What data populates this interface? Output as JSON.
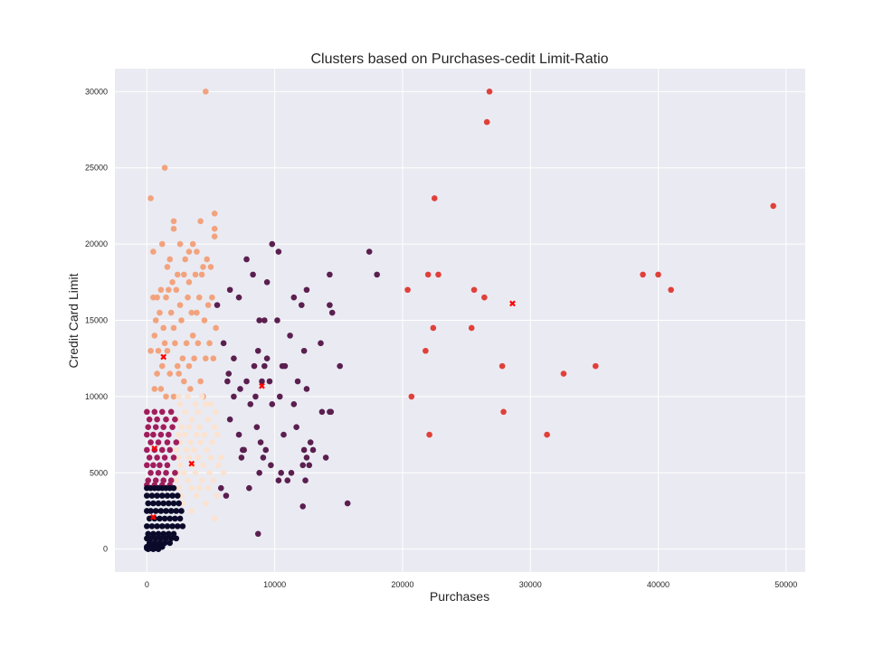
{
  "chart_data": {
    "type": "scatter",
    "title": "Clusters based on Purchases-cedit Limit-Ratio",
    "xlabel": "Purchases",
    "ylabel": "Credit Card Limit",
    "xlim": [
      -2500,
      51500
    ],
    "ylim": [
      -1500,
      31500
    ],
    "xticks": [
      0,
      10000,
      20000,
      30000,
      40000,
      50000
    ],
    "yticks": [
      0,
      5000,
      10000,
      15000,
      20000,
      25000,
      30000
    ],
    "grid": true,
    "background": "#eaeaf2",
    "colors": {
      "cluster_low_limit": "#0b0a2a",
      "cluster_mid_limit": "#a01d5c",
      "cluster_mid_purchases": "#fbe3d1",
      "cluster_high_limit": "#f2a37d",
      "cluster_high_purchases": "#5a1f4f",
      "cluster_outliers": "#e0403a",
      "centroid": "#ff0000"
    },
    "series": [
      {
        "color": "#e0403a",
        "x": [
          26800,
          26600,
          22500,
          49000,
          22000,
          22800,
          20400,
          25600,
          26400,
          38800,
          40000,
          41000,
          22400,
          25400,
          21800,
          27800,
          32600,
          35100,
          20700,
          27900,
          22100,
          31300
        ],
        "y": [
          30000,
          28000,
          23000,
          22500,
          18000,
          18000,
          17000,
          17000,
          16500,
          18000,
          18000,
          17000,
          14500,
          14500,
          13000,
          12000,
          11500,
          12000,
          10000,
          9000,
          7500,
          7500
        ]
      },
      {
        "color": "#5a1f4f",
        "x": [
          9800,
          10300,
          17400,
          18000,
          7800,
          8300,
          9400,
          14300,
          11500,
          12500,
          12100,
          6500,
          7200,
          5500,
          14300,
          14500,
          13600,
          8800,
          9200,
          10200,
          11200,
          12300,
          6000,
          8700,
          9400,
          10600,
          15100,
          6400,
          6800,
          7800,
          8400,
          9200,
          9600,
          10800,
          11800,
          12500,
          7300,
          8500,
          9000,
          14300,
          14400,
          6800,
          8100,
          9800,
          10400,
          11500,
          12800,
          13000,
          7200,
          8600,
          11700,
          12300,
          6500,
          7500,
          8900,
          12500,
          8800,
          15700,
          6200,
          10300,
          12200,
          14000,
          8000,
          9700,
          11000,
          12700,
          5800,
          7600,
          9300,
          10700,
          13700,
          6300,
          9100,
          10500,
          11300,
          12200,
          8700,
          7400,
          12400
        ],
        "y": [
          20000,
          19500,
          19500,
          18000,
          19000,
          18000,
          17500,
          18000,
          16500,
          17000,
          16000,
          17000,
          16500,
          16000,
          16000,
          15500,
          13500,
          15000,
          15000,
          15000,
          14000,
          13000,
          13500,
          13000,
          12500,
          12000,
          12000,
          11500,
          12500,
          11000,
          12000,
          12000,
          11000,
          12000,
          11000,
          10500,
          10500,
          10000,
          11000,
          9000,
          9000,
          10000,
          9500,
          9500,
          10000,
          9500,
          7000,
          6500,
          7500,
          8000,
          8000,
          6500,
          8500,
          6500,
          7000,
          6000,
          5000,
          3000,
          3500,
          4500,
          2800,
          6000,
          4000,
          5500,
          4500,
          5500,
          4000,
          6500,
          6500,
          7500,
          9000,
          11000,
          6000,
          5000,
          5000,
          5500,
          1000,
          6000,
          4500
        ]
      },
      {
        "color": "#f2a37d",
        "x": [
          4600,
          1400,
          300,
          5300,
          2100,
          4200,
          2100,
          5300,
          5300,
          3600,
          1200,
          2600,
          3300,
          500,
          3900,
          4700,
          5000,
          1800,
          3000,
          1600,
          4400,
          2400,
          2900,
          3800,
          4300,
          3300,
          2000,
          1100,
          1700,
          2300,
          500,
          800,
          1500,
          3200,
          4100,
          5100,
          4800,
          2600,
          3500,
          1000,
          1900,
          3900,
          700,
          2700,
          4500,
          5400,
          1300,
          2100,
          3600,
          600,
          1400,
          2200,
          3100,
          4000,
          4900,
          300,
          900,
          1600,
          2800,
          3700,
          4600,
          5200,
          1200,
          2400,
          3300,
          800,
          1800,
          2500,
          2900,
          4200,
          600,
          1100,
          1500,
          2100,
          3400,
          4400
        ],
        "y": [
          30000,
          25000,
          23000,
          22000,
          21500,
          21500,
          21000,
          21000,
          20500,
          20000,
          20000,
          20000,
          19500,
          19500,
          19500,
          19000,
          18500,
          19000,
          19000,
          18500,
          18500,
          18000,
          18000,
          18000,
          18000,
          17500,
          17500,
          17000,
          17000,
          17000,
          16500,
          16500,
          16500,
          16500,
          16500,
          16500,
          16000,
          16000,
          15500,
          15500,
          15500,
          15500,
          15000,
          15000,
          15000,
          14500,
          14500,
          14500,
          14000,
          14000,
          13500,
          13500,
          13500,
          13500,
          13500,
          13000,
          13000,
          13000,
          12500,
          12500,
          12500,
          12500,
          12000,
          12000,
          12000,
          11500,
          11500,
          11500,
          11000,
          11000,
          10500,
          10500,
          10000,
          10000,
          10500,
          10000
        ]
      },
      {
        "color": "#fbe3d1",
        "x": [
          2500,
          3200,
          4300,
          5000,
          2600,
          3800,
          4600,
          3000,
          4000,
          5400,
          2400,
          3500,
          4800,
          2700,
          3300,
          4100,
          5300,
          2500,
          3000,
          3900,
          4500,
          5500,
          2600,
          3400,
          4200,
          5100,
          2300,
          3100,
          3700,
          4700,
          5800,
          2500,
          3300,
          4000,
          5000,
          2600,
          3600,
          4400,
          5600,
          2400,
          2900,
          3800,
          4900,
          6000,
          2300,
          3200,
          4300,
          5200,
          2500,
          3500,
          4100,
          4800,
          2700,
          3900,
          5500,
          2800,
          4600,
          3500,
          5300
        ],
        "y": [
          10000,
          10000,
          10000,
          9500,
          9500,
          9500,
          9500,
          9000,
          9000,
          9000,
          8500,
          8500,
          8500,
          8000,
          8000,
          8000,
          8000,
          7500,
          7500,
          7500,
          7500,
          7500,
          7000,
          7000,
          7000,
          7000,
          6500,
          6500,
          6500,
          6500,
          6000,
          6000,
          6000,
          6000,
          6000,
          5500,
          5500,
          5500,
          5500,
          5000,
          5000,
          5000,
          5000,
          5000,
          4500,
          4500,
          4500,
          4500,
          4000,
          4000,
          4000,
          4000,
          3500,
          3500,
          3500,
          3000,
          3000,
          2500,
          2000
        ]
      },
      {
        "color": "#a01d5c",
        "x": [
          0,
          600,
          1200,
          1900,
          200,
          800,
          1500,
          2200,
          100,
          700,
          1300,
          2000,
          0,
          500,
          1100,
          1700,
          300,
          900,
          1600,
          2300,
          0,
          600,
          1200,
          1800,
          200,
          800,
          1400,
          2100,
          0,
          500,
          1000,
          1600,
          300,
          900,
          1500,
          2200,
          100,
          700,
          1300,
          1900,
          0,
          600,
          1200,
          1800
        ],
        "y": [
          9000,
          9000,
          9000,
          9000,
          8500,
          8500,
          8500,
          8500,
          8000,
          8000,
          8000,
          8000,
          7500,
          7500,
          7500,
          7500,
          7000,
          7000,
          7000,
          7000,
          6500,
          6500,
          6500,
          6500,
          6000,
          6000,
          6000,
          6000,
          5500,
          5500,
          5500,
          5500,
          5000,
          5000,
          5000,
          5000,
          4500,
          4500,
          4500,
          4500,
          4200,
          4200,
          4200,
          4200
        ]
      },
      {
        "color": "#0b0a2a",
        "x": [
          0,
          300,
          600,
          900,
          1200,
          1500,
          1800,
          2100,
          0,
          400,
          800,
          1200,
          1600,
          2000,
          2400,
          100,
          500,
          900,
          1300,
          1700,
          2100,
          2500,
          0,
          300,
          700,
          1100,
          1500,
          1900,
          2300,
          2700,
          200,
          600,
          1000,
          1400,
          1800,
          2200,
          2600,
          0,
          400,
          800,
          1200,
          1600,
          2000,
          2400,
          2800,
          100,
          500,
          900,
          1300,
          1700,
          2100,
          0,
          300,
          700,
          1100,
          1500,
          1900,
          2300,
          200,
          600,
          1000,
          1400,
          1800,
          0,
          400,
          800,
          1200,
          100,
          500,
          900,
          0,
          300,
          600
        ],
        "y": [
          4000,
          4000,
          4000,
          4000,
          4000,
          4000,
          4000,
          4000,
          3500,
          3500,
          3500,
          3500,
          3500,
          3500,
          3500,
          3000,
          3000,
          3000,
          3000,
          3000,
          3000,
          3000,
          2500,
          2500,
          2500,
          2500,
          2500,
          2500,
          2500,
          2500,
          2000,
          2000,
          2000,
          2000,
          2000,
          2000,
          2000,
          1500,
          1500,
          1500,
          1500,
          1500,
          1500,
          1500,
          1500,
          1000,
          1000,
          1000,
          1000,
          1000,
          1000,
          700,
          700,
          700,
          700,
          700,
          700,
          700,
          400,
          400,
          400,
          400,
          400,
          150,
          150,
          150,
          150,
          0,
          0,
          0,
          50,
          50,
          50
        ]
      }
    ],
    "centroids": {
      "color": "#ff0000",
      "x": [
        28600,
        1300,
        9000,
        3500,
        600,
        500
      ],
      "y": [
        16100,
        12600,
        10700,
        5600,
        6600,
        2100
      ]
    }
  }
}
